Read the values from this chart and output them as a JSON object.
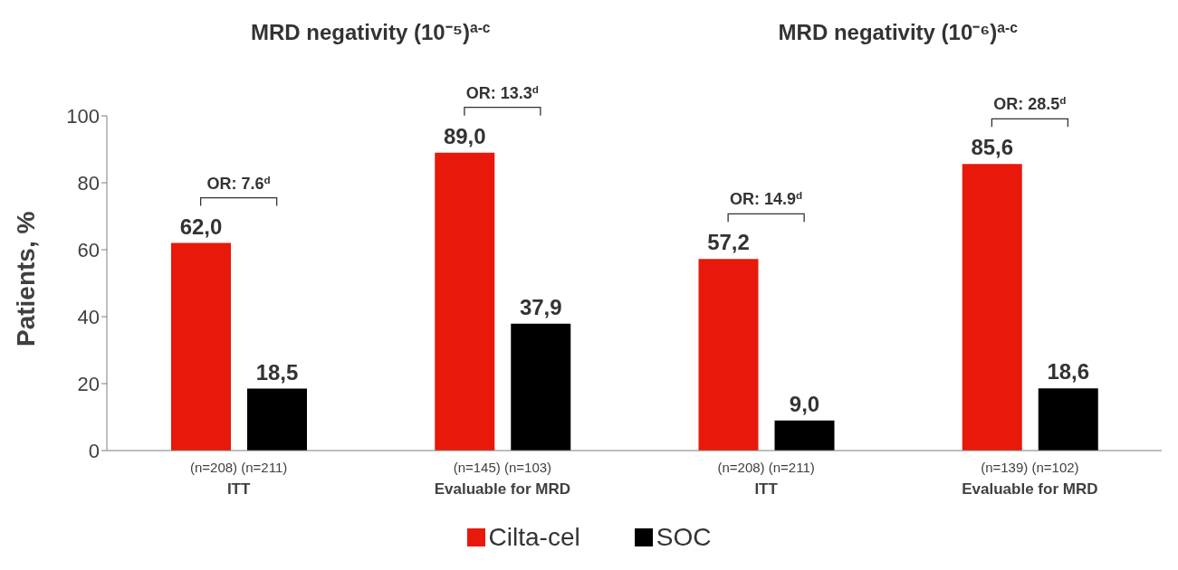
{
  "chart_data": {
    "type": "bar",
    "categories": [
      "(n=208) (n=211)\nITT",
      "(n=145) (n=103)\nEvaluable for MRD",
      "(n=208) (n=211)\nITT",
      "(n=139) (n=102)\nEvaluable for MRD"
    ],
    "series": [
      {
        "name": "Cilta-cel",
        "color": "#e8190a",
        "values": [
          62.0,
          89.0,
          57.2,
          85.6
        ],
        "value_labels": [
          "62,0",
          "89,0",
          "57,2",
          "85,6"
        ]
      },
      {
        "name": "SOC",
        "color": "#000000",
        "values": [
          18.5,
          37.9,
          9.0,
          18.6
        ],
        "value_labels": [
          "18,5",
          "37,9",
          "9,0",
          "18,6"
        ]
      }
    ],
    "ylabel": "Patients, %",
    "ylim": [
      0,
      100
    ],
    "yticks": [
      0,
      20,
      40,
      60,
      80,
      100
    ],
    "legend": "bottom",
    "annotations": [
      "MRD negativity (10⁻⁵)$^{a-c}$",
      "MRD negativity (10⁻⁶)$^{a-c}$",
      "OR: 7.6$^{d}$",
      "OR: 13.3$^{d}$",
      "OR: 14.9$^{d}$",
      "OR: 28.5$^{d}$"
    ]
  }
}
